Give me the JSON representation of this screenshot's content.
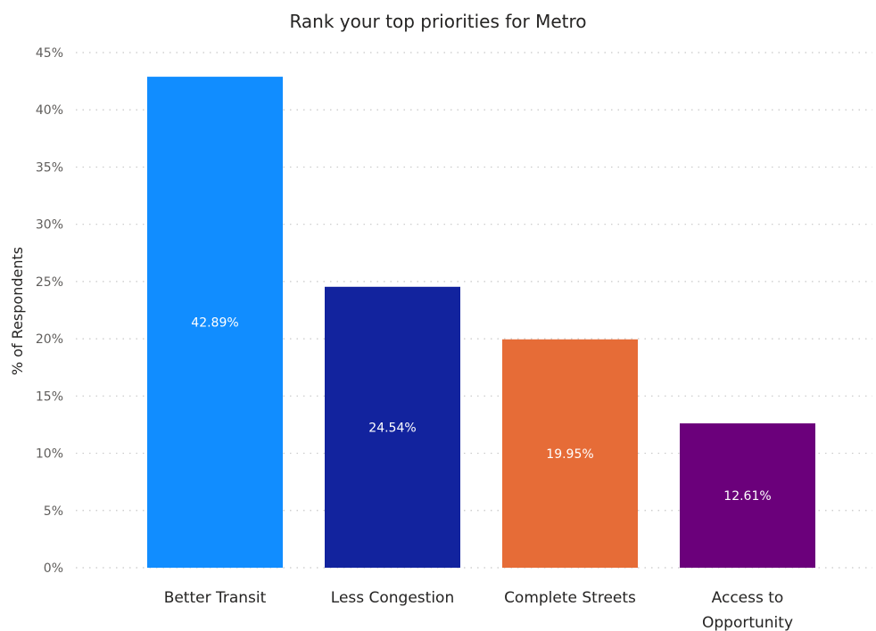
{
  "chart_data": {
    "type": "bar",
    "title": "Rank your top priorities for Metro",
    "ylabel": "% of Respondents",
    "xlabel": "",
    "ylim": [
      0,
      45
    ],
    "yticks": [
      "0%",
      "5%",
      "10%",
      "15%",
      "20%",
      "25%",
      "30%",
      "35%",
      "40%",
      "45%"
    ],
    "grid": true,
    "categories": [
      "Better Transit",
      "Less Congestion",
      "Complete Streets",
      "Access to Opportunity"
    ],
    "values": [
      42.89,
      24.54,
      19.95,
      12.61
    ],
    "data_labels": [
      "42.89%",
      "24.54%",
      "19.95%",
      "12.61%"
    ],
    "colors": [
      "#118DFF",
      "#12239E",
      "#E66C37",
      "#6B007B"
    ]
  }
}
